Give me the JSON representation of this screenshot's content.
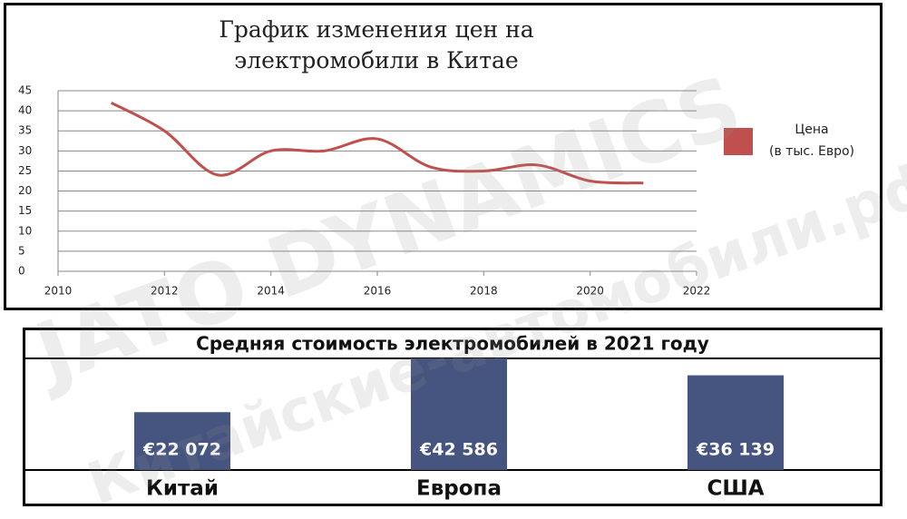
{
  "chart_data": [
    {
      "type": "line",
      "title": "График изменения цен на\nэлектромобили в Китае",
      "x": [
        2011,
        2012,
        2013,
        2014,
        2015,
        2016,
        2017,
        2018,
        2019,
        2020,
        2021
      ],
      "series": [
        {
          "name": "Цена\n(в тыс. Евро)",
          "color": "#c0504d",
          "values": [
            42,
            35,
            24,
            30,
            30,
            33,
            26,
            25,
            26.5,
            22.5,
            22
          ]
        }
      ],
      "xlim": [
        2010,
        2022
      ],
      "xticks": [
        2010,
        2012,
        2014,
        2016,
        2018,
        2020,
        2022
      ],
      "ylim": [
        0,
        45
      ],
      "yticks": [
        0,
        5,
        10,
        15,
        20,
        25,
        30,
        35,
        40,
        45
      ],
      "grid": true,
      "legend": "right"
    },
    {
      "type": "bar",
      "title": "Средняя стоимость электромобилей в 2021 году",
      "categories": [
        "Китай",
        "Европа",
        "США"
      ],
      "values": [
        22072,
        42586,
        36139
      ],
      "value_labels": [
        "€22 072",
        "€42 586",
        "€36 139"
      ],
      "color": "#46557f"
    }
  ],
  "watermark": [
    "JATO DYNAMICS",
    "Китайские-автомобили.рф"
  ]
}
